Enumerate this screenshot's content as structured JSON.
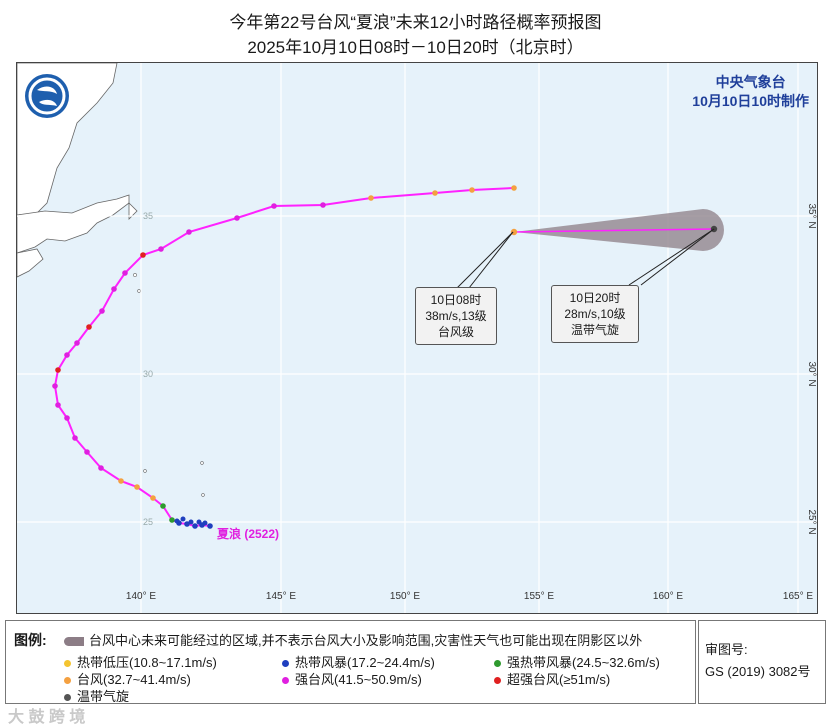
{
  "title": "今年第22号台风“夏浪”未来12小时路径概率预报图",
  "subtitle": "2025年10月10日08时－10日20时（北京时）",
  "agency": {
    "name": "中央气象台",
    "made": "10月10日10时制作"
  },
  "typhoon_label": "夏浪 (2522)",
  "lon_labels": [
    "140° E",
    "145° E",
    "150° E",
    "155° E",
    "160° E",
    "165° E"
  ],
  "lat_labels": [
    "35° N",
    "30° N",
    "25° N"
  ],
  "grid_lat_marks": [
    "35",
    "30",
    "25"
  ],
  "forecast_now": {
    "time": "10日08时",
    "wind": "38m/s,13级",
    "level": "台风级"
  },
  "forecast_next": {
    "time": "10日20时",
    "wind": "28m/s,10级",
    "level": "温带气旋"
  },
  "legend": {
    "title": "图例:",
    "cone": "台风中心未来可能经过的区域,并不表示台风大小及影响范围,灾害性天气也可能出现在阴影区以外",
    "items": [
      {
        "label": "热带低压(10.8~17.1m/s)",
        "color": "#f4c430"
      },
      {
        "label": "热带风暴(17.2~24.4m/s)",
        "color": "#1f3fbf"
      },
      {
        "label": "强热带风暴(24.5~32.6m/s)",
        "color": "#2e9a2e"
      },
      {
        "label": "台风(32.7~41.4m/s)",
        "color": "#f4a040"
      },
      {
        "label": "强台风(41.5~50.9m/s)",
        "color": "#e020e0"
      },
      {
        "label": "超强台风(≥51m/s)",
        "color": "#e02020"
      },
      {
        "label": "温带气旋",
        "color": "#555555"
      }
    ]
  },
  "audit": {
    "label": "审图号:",
    "number": "GS (2019) 3082号"
  },
  "watermark": "大 鼓 跨 境",
  "track_color": "#ff22ff",
  "cone_color": "#8c7d86"
}
